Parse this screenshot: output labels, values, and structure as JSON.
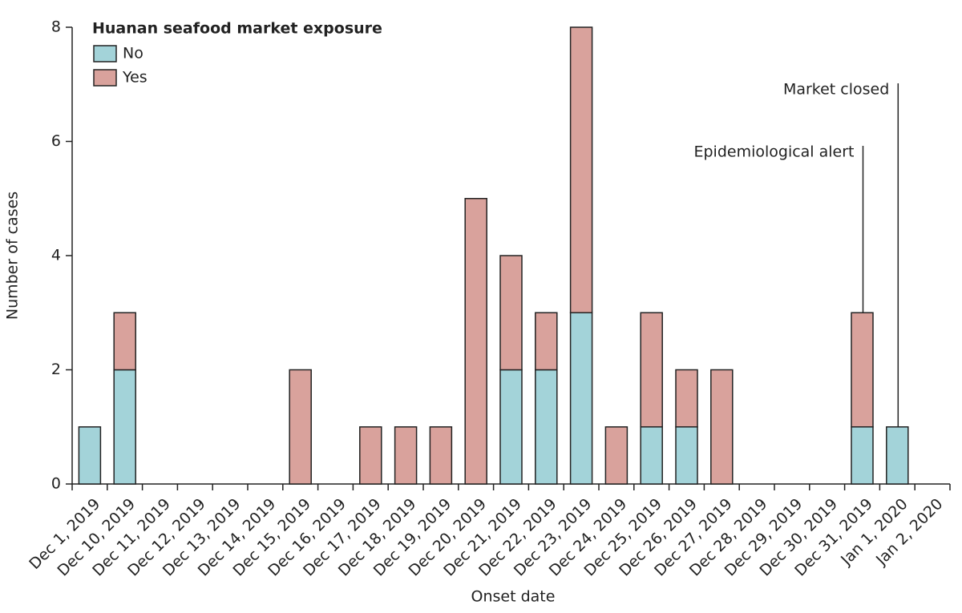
{
  "chart_data": {
    "type": "stacked-bar",
    "x_label": "Onset date",
    "y_label": "Number of cases",
    "legend_title": "Huanan seafood market exposure",
    "legend": "top-left",
    "categories": [
      "Dec 1, 2019",
      "Dec 10, 2019",
      "Dec 11, 2019",
      "Dec 12, 2019",
      "Dec 13, 2019",
      "Dec 14, 2019",
      "Dec 15, 2019",
      "Dec 16, 2019",
      "Dec 17, 2019",
      "Dec 18, 2019",
      "Dec 19, 2019",
      "Dec 20, 2019",
      "Dec 21, 2019",
      "Dec 22, 2019",
      "Dec 23, 2019",
      "Dec 24, 2019",
      "Dec 25, 2019",
      "Dec 26, 2019",
      "Dec 27, 2019",
      "Dec 28, 2019",
      "Dec 29, 2019",
      "Dec 30, 2019",
      "Dec 31, 2019",
      "Jan 1, 2020",
      "Jan 2, 2020"
    ],
    "series": [
      {
        "name": "No",
        "color": "#a3d3d9",
        "values": [
          1,
          2,
          0,
          0,
          0,
          0,
          0,
          0,
          0,
          0,
          0,
          0,
          2,
          2,
          3,
          0,
          1,
          1,
          0,
          0,
          0,
          0,
          1,
          1,
          0
        ]
      },
      {
        "name": "Yes",
        "color": "#d9a29c",
        "values": [
          0,
          1,
          0,
          0,
          0,
          0,
          2,
          0,
          1,
          1,
          1,
          5,
          2,
          1,
          5,
          1,
          2,
          1,
          2,
          0,
          0,
          0,
          2,
          0,
          0
        ]
      }
    ],
    "ylim": [
      0,
      8
    ],
    "yticks": [
      0,
      2,
      4,
      6,
      8
    ],
    "annotations": [
      {
        "text": "Epidemiological alert",
        "x": "Dec 31, 2019"
      },
      {
        "text": "Market closed",
        "x": "Jan 1, 2020"
      }
    ]
  }
}
